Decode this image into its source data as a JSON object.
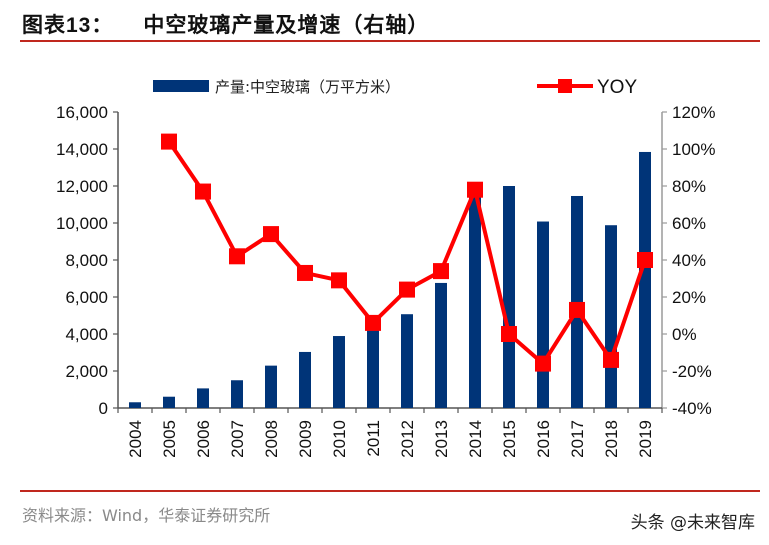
{
  "header": {
    "figure_label": "图表13：",
    "title": "中空玻璃产量及增速（右轴）"
  },
  "footer": {
    "source": "资料来源：Wind，华泰证券研究所",
    "watermark": "头条 @未来智库"
  },
  "colors": {
    "bar": "#003478",
    "line": "#ff0000",
    "rule": "#c0281e",
    "axis": "#555555"
  },
  "chart_data": {
    "type": "bar+line",
    "title": "中空玻璃产量及增速（右轴）",
    "categories": [
      "2004",
      "2005",
      "2006",
      "2007",
      "2008",
      "2009",
      "2010",
      "2011",
      "2012",
      "2013",
      "2014",
      "2015",
      "2016",
      "2017",
      "2018",
      "2019"
    ],
    "series": [
      {
        "name": "产量:中空玻璃（万平方米）",
        "type": "bar",
        "axis": "left",
        "values": [
          310,
          610,
          1060,
          1500,
          2290,
          3030,
          3890,
          4220,
          5070,
          6760,
          11700,
          12000,
          10080,
          11460,
          9880,
          13840
        ]
      },
      {
        "name": "YOY",
        "type": "line",
        "axis": "right",
        "values": [
          null,
          104,
          77,
          42,
          54,
          33,
          29,
          6,
          24,
          34,
          78,
          0,
          -16,
          13,
          -14,
          40
        ]
      }
    ],
    "y_left": {
      "range": [
        0,
        16000
      ],
      "ticks": [
        "0",
        "2,000",
        "4,000",
        "6,000",
        "8,000",
        "10,000",
        "12,000",
        "14,000",
        "16,000"
      ]
    },
    "y_right": {
      "range": [
        -40,
        120
      ],
      "unit": "%",
      "ticks": [
        "-40%",
        "-20%",
        "0%",
        "20%",
        "40%",
        "60%",
        "80%",
        "100%",
        "120%"
      ]
    },
    "xlabel": "",
    "ylabel": "",
    "grid": false,
    "legend": "top"
  }
}
